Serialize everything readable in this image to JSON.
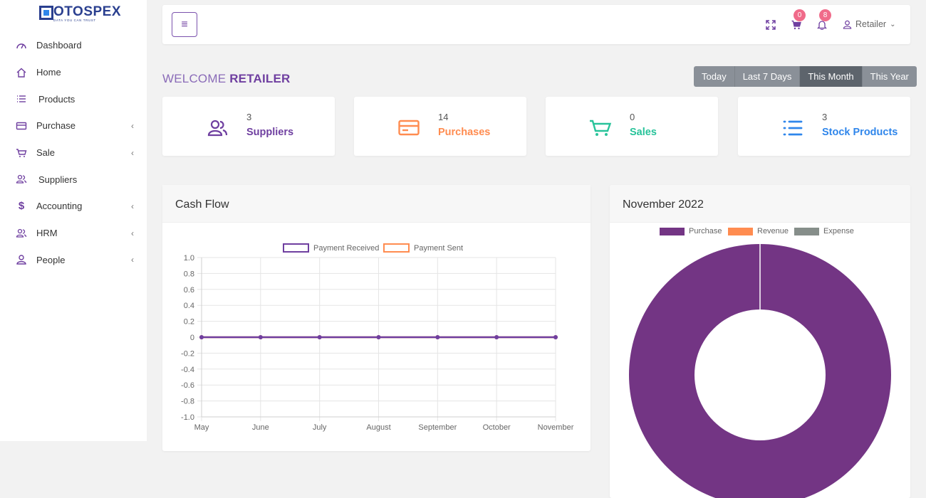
{
  "brand": {
    "name": "OTOSPEX",
    "tagline": "DATA YOU CAN TRUST"
  },
  "sidebar": {
    "items": [
      {
        "label": "Dashboard",
        "icon": "gauge-icon",
        "has_submenu": false
      },
      {
        "label": "Home",
        "icon": "home-icon",
        "has_submenu": false
      },
      {
        "label": "Products",
        "icon": "list-icon",
        "has_submenu": false
      },
      {
        "label": "Purchase",
        "icon": "credit-card-icon",
        "has_submenu": true
      },
      {
        "label": "Sale",
        "icon": "cart-icon",
        "has_submenu": true
      },
      {
        "label": "Suppliers",
        "icon": "users-icon",
        "has_submenu": false
      },
      {
        "label": "Accounting",
        "icon": "dollar-icon",
        "has_submenu": true
      },
      {
        "label": "HRM",
        "icon": "users-icon",
        "has_submenu": true
      },
      {
        "label": "People",
        "icon": "user-icon",
        "has_submenu": true
      }
    ]
  },
  "topbar": {
    "cart_count": "0",
    "notification_count": "8",
    "user_label": "Retailer"
  },
  "welcome": {
    "prefix": "WELCOME",
    "name": "RETAILER"
  },
  "range_filter": {
    "options": [
      "Today",
      "Last 7 Days",
      "This Month",
      "This Year"
    ],
    "selected": "This Month"
  },
  "stats": [
    {
      "value": "3",
      "label": "Suppliers",
      "color": "#6f3fa0",
      "icon": "users-icon"
    },
    {
      "value": "14",
      "label": "Purchases",
      "color": "#ff8c50",
      "icon": "credit-card-icon"
    },
    {
      "value": "0",
      "label": "Sales",
      "color": "#28c39a",
      "icon": "cart-icon"
    },
    {
      "value": "3",
      "label": "Stock Products",
      "color": "#2f86eb",
      "icon": "list-icon"
    }
  ],
  "cash_flow": {
    "title": "Cash Flow"
  },
  "month_panel": {
    "title": "November 2022"
  },
  "chart_data": [
    {
      "type": "line",
      "x": [
        "May",
        "June",
        "July",
        "August",
        "September",
        "October",
        "November"
      ],
      "series": [
        {
          "name": "Payment Received",
          "values": [
            0,
            0,
            0,
            0,
            0,
            0,
            0
          ],
          "color": "#6f3fa0"
        },
        {
          "name": "Payment Sent",
          "values": [
            0,
            0,
            0,
            0,
            0,
            0,
            0
          ],
          "color": "#ff8c50"
        }
      ],
      "ylim": [
        -1.0,
        1.0
      ],
      "yticks": [
        "1.0",
        "0.8",
        "0.6",
        "0.4",
        "0.2",
        "0",
        "-0.2",
        "-0.4",
        "-0.6",
        "-0.8",
        "-1.0"
      ],
      "grid": true,
      "legend": "top"
    },
    {
      "type": "pie",
      "variant": "doughnut",
      "categories": [
        "Purchase",
        "Revenue",
        "Expense"
      ],
      "values": [
        1,
        0,
        0
      ],
      "colors": [
        "#733584",
        "#ff8c50",
        "#868e8a"
      ],
      "legend": "top"
    }
  ]
}
